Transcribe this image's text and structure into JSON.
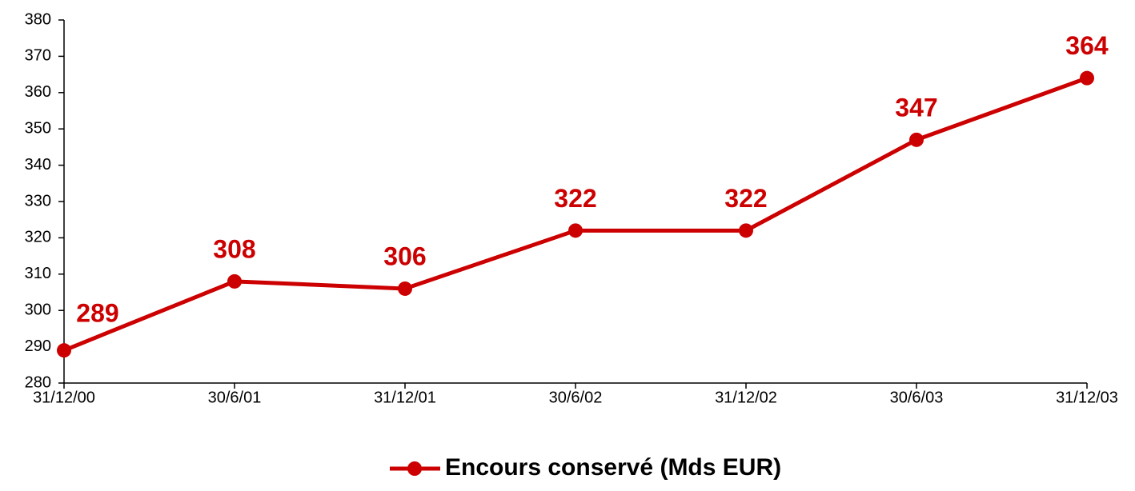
{
  "chart_data": {
    "type": "line",
    "categories": [
      "31/12/00",
      "30/6/01",
      "31/12/01",
      "30/6/02",
      "31/12/02",
      "30/6/03",
      "31/12/03"
    ],
    "series": [
      {
        "name": "Encours conservé (Mds EUR)",
        "color": "#cc0000",
        "values": [
          289,
          308,
          306,
          322,
          322,
          347,
          364
        ]
      }
    ],
    "ylim": [
      280,
      380
    ],
    "yticks": [
      280,
      290,
      300,
      310,
      320,
      330,
      340,
      350,
      360,
      370,
      380
    ],
    "grid": false,
    "legend": "bottom"
  }
}
